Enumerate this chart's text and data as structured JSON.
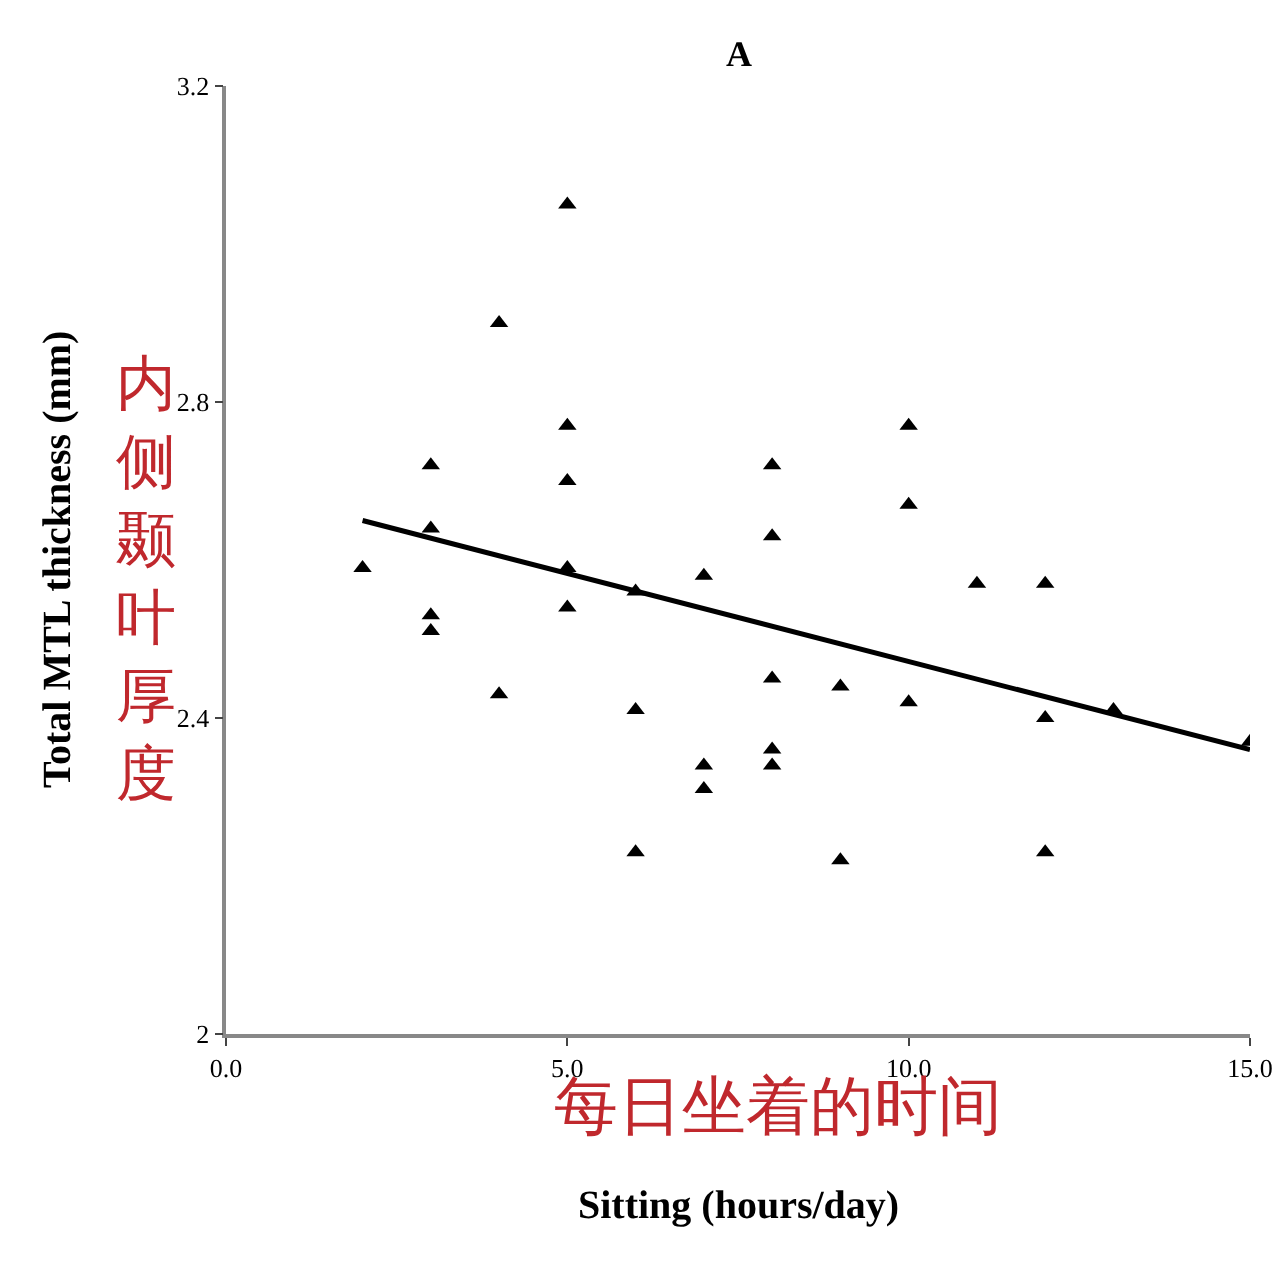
{
  "chart_data": {
    "type": "scatter",
    "title": "A",
    "xlabel": "Sitting (hours/day)",
    "ylabel": "Total MTL thickness (mm)",
    "xlim": [
      0,
      15
    ],
    "xticks": [
      {
        "value": 0,
        "label": "0.0"
      },
      {
        "value": 5,
        "label": "5.0"
      },
      {
        "value": 10,
        "label": "10.0"
      },
      {
        "value": 15,
        "label": "15.0"
      }
    ],
    "ylim": [
      2,
      3.2
    ],
    "yticks": [
      2,
      2.4,
      2.8,
      3.2
    ],
    "legend": false,
    "marker": "triangle",
    "series": [
      {
        "color": "#000000",
        "x": [
          2,
          3,
          3,
          3,
          3,
          4,
          4,
          5,
          5,
          5,
          5,
          5,
          6,
          6,
          6,
          7,
          7,
          7,
          8,
          8,
          8,
          8,
          8,
          9,
          9,
          10,
          10,
          10,
          11,
          12,
          12,
          12,
          13,
          15
        ],
        "values": [
          2.59,
          2.72,
          2.64,
          2.53,
          2.51,
          2.9,
          2.43,
          3.05,
          2.77,
          2.7,
          2.59,
          2.54,
          2.56,
          2.41,
          2.23,
          2.58,
          2.34,
          2.31,
          2.72,
          2.63,
          2.45,
          2.36,
          2.34,
          2.44,
          2.22,
          2.77,
          2.67,
          2.42,
          2.57,
          2.57,
          2.4,
          2.23,
          2.41,
          2.37
        ]
      },
      {
        "type": "line",
        "color": "#000000",
        "line_style": "solid",
        "marker": "none",
        "x": [
          2,
          15
        ],
        "values": [
          2.65,
          2.36
        ]
      }
    ],
    "annotations": [
      "内侧颞叶厚度",
      "每日坐着的时间"
    ]
  }
}
